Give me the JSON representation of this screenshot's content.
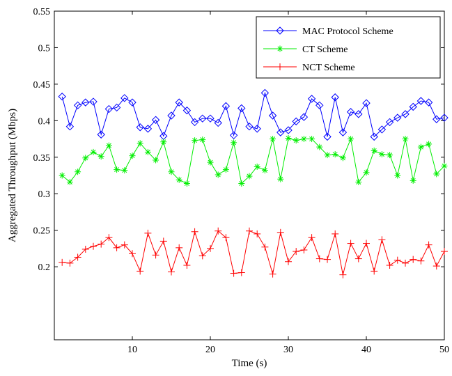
{
  "chart_data": {
    "type": "line",
    "title": "",
    "xlabel": "Time (s)",
    "ylabel": "Aggregated Throughput (Mbps)",
    "xlim": [
      0,
      50
    ],
    "ylim": [
      0.1,
      0.55
    ],
    "xticks": [
      10,
      20,
      30,
      40,
      50
    ],
    "yticks": [
      0.2,
      0.25,
      0.3,
      0.35,
      0.4,
      0.45,
      0.5,
      0.55
    ],
    "ytick_labels": [
      "0.2",
      "0.25",
      "0.3",
      "0.35",
      "0.4",
      "0.45",
      "0.5",
      "0.55"
    ],
    "grid": false,
    "legend_position": "top-right",
    "x": [
      1,
      2,
      3,
      4,
      5,
      6,
      7,
      8,
      9,
      10,
      11,
      12,
      13,
      14,
      15,
      16,
      17,
      18,
      19,
      20,
      21,
      22,
      23,
      24,
      25,
      26,
      27,
      28,
      29,
      30,
      31,
      32,
      33,
      34,
      35,
      36,
      37,
      38,
      39,
      40,
      41,
      42,
      43,
      44,
      45,
      46,
      47,
      48,
      49,
      50
    ],
    "series": [
      {
        "name": "MAC Protocol Scheme",
        "color": "#0000ff",
        "marker": "diamond",
        "values": [
          0.433,
          0.392,
          0.421,
          0.425,
          0.426,
          0.381,
          0.416,
          0.418,
          0.431,
          0.425,
          0.391,
          0.389,
          0.401,
          0.379,
          0.407,
          0.425,
          0.414,
          0.398,
          0.403,
          0.403,
          0.397,
          0.42,
          0.38,
          0.417,
          0.392,
          0.389,
          0.438,
          0.407,
          0.384,
          0.387,
          0.399,
          0.405,
          0.43,
          0.421,
          0.378,
          0.432,
          0.384,
          0.412,
          0.409,
          0.424,
          0.378,
          0.388,
          0.398,
          0.404,
          0.409,
          0.419,
          0.427,
          0.425,
          0.402,
          0.404
        ]
      },
      {
        "name": "CT Scheme",
        "color": "#00ee00",
        "marker": "asterisk",
        "values": [
          0.325,
          0.316,
          0.33,
          0.349,
          0.357,
          0.351,
          0.366,
          0.333,
          0.332,
          0.352,
          0.369,
          0.357,
          0.346,
          0.371,
          0.33,
          0.319,
          0.314,
          0.373,
          0.374,
          0.343,
          0.326,
          0.333,
          0.37,
          0.314,
          0.324,
          0.337,
          0.332,
          0.375,
          0.32,
          0.376,
          0.373,
          0.375,
          0.375,
          0.364,
          0.353,
          0.354,
          0.349,
          0.375,
          0.316,
          0.329,
          0.359,
          0.354,
          0.353,
          0.325,
          0.375,
          0.318,
          0.364,
          0.368,
          0.327,
          0.338
        ]
      },
      {
        "name": "NCT Scheme",
        "color": "#ff0000",
        "marker": "plus",
        "values": [
          0.206,
          0.205,
          0.213,
          0.224,
          0.228,
          0.231,
          0.24,
          0.226,
          0.23,
          0.218,
          0.194,
          0.246,
          0.216,
          0.235,
          0.193,
          0.226,
          0.202,
          0.248,
          0.215,
          0.225,
          0.249,
          0.24,
          0.191,
          0.192,
          0.249,
          0.245,
          0.227,
          0.19,
          0.247,
          0.207,
          0.221,
          0.223,
          0.24,
          0.211,
          0.21,
          0.245,
          0.189,
          0.232,
          0.211,
          0.232,
          0.194,
          0.237,
          0.202,
          0.209,
          0.205,
          0.21,
          0.208,
          0.23,
          0.201,
          0.221
        ]
      }
    ]
  }
}
